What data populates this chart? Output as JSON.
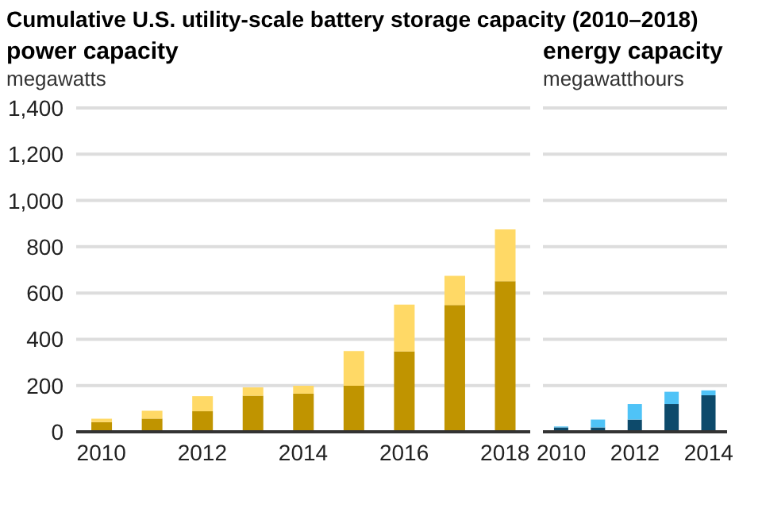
{
  "chart_data": [
    {
      "type": "bar",
      "title": "Cumulative U.S. utility-scale battery storage capacity (2010–2018)",
      "subtitle": "power capacity",
      "ylabel": "megawatts",
      "categories": [
        "2010",
        null,
        "2012",
        null,
        "2014",
        null,
        "2016",
        null,
        "2018"
      ],
      "stacked": true,
      "grid": "y",
      "ylim": [
        0,
        1400
      ],
      "yticks": [
        0,
        {
          "value": 200,
          "label": "200"
        },
        {
          "value": 400,
          "label": "400"
        },
        {
          "value": 600,
          "label": "600"
        },
        {
          "value": 800,
          "label": "800"
        },
        {
          "value": 1000,
          "label": "1,000"
        },
        {
          "value": 1200,
          "label": "1,200"
        },
        {
          "value": 1400,
          "label": "1,400"
        }
      ],
      "series": [
        {
          "color": "#c09400",
          "values": [
            42,
            57,
            89,
            156,
            165,
            199,
            347,
            548,
            651
          ]
        },
        {
          "color": "#ffd966",
          "values": [
            15,
            34,
            65,
            36,
            34,
            150,
            203,
            126,
            224
          ]
        }
      ]
    },
    {
      "type": "bar",
      "subtitle": "energy capacity",
      "ylabel": "megawatthours",
      "categories": [
        "2010",
        null,
        "2012",
        null,
        "2014"
      ],
      "stacked": true,
      "grid": "y",
      "tick_labels": "x",
      "ylim": [
        0,
        1400
      ],
      "yticks": [
        0,
        200,
        400,
        600,
        800,
        1000,
        1200,
        1400
      ],
      "series": [
        {
          "color": "#0d4a6b",
          "values": [
            19,
            19,
            53,
            120,
            158
          ]
        },
        {
          "color": "#4fc3f7",
          "values": [
            4,
            34,
            67,
            53,
            21
          ]
        }
      ]
    }
  ]
}
